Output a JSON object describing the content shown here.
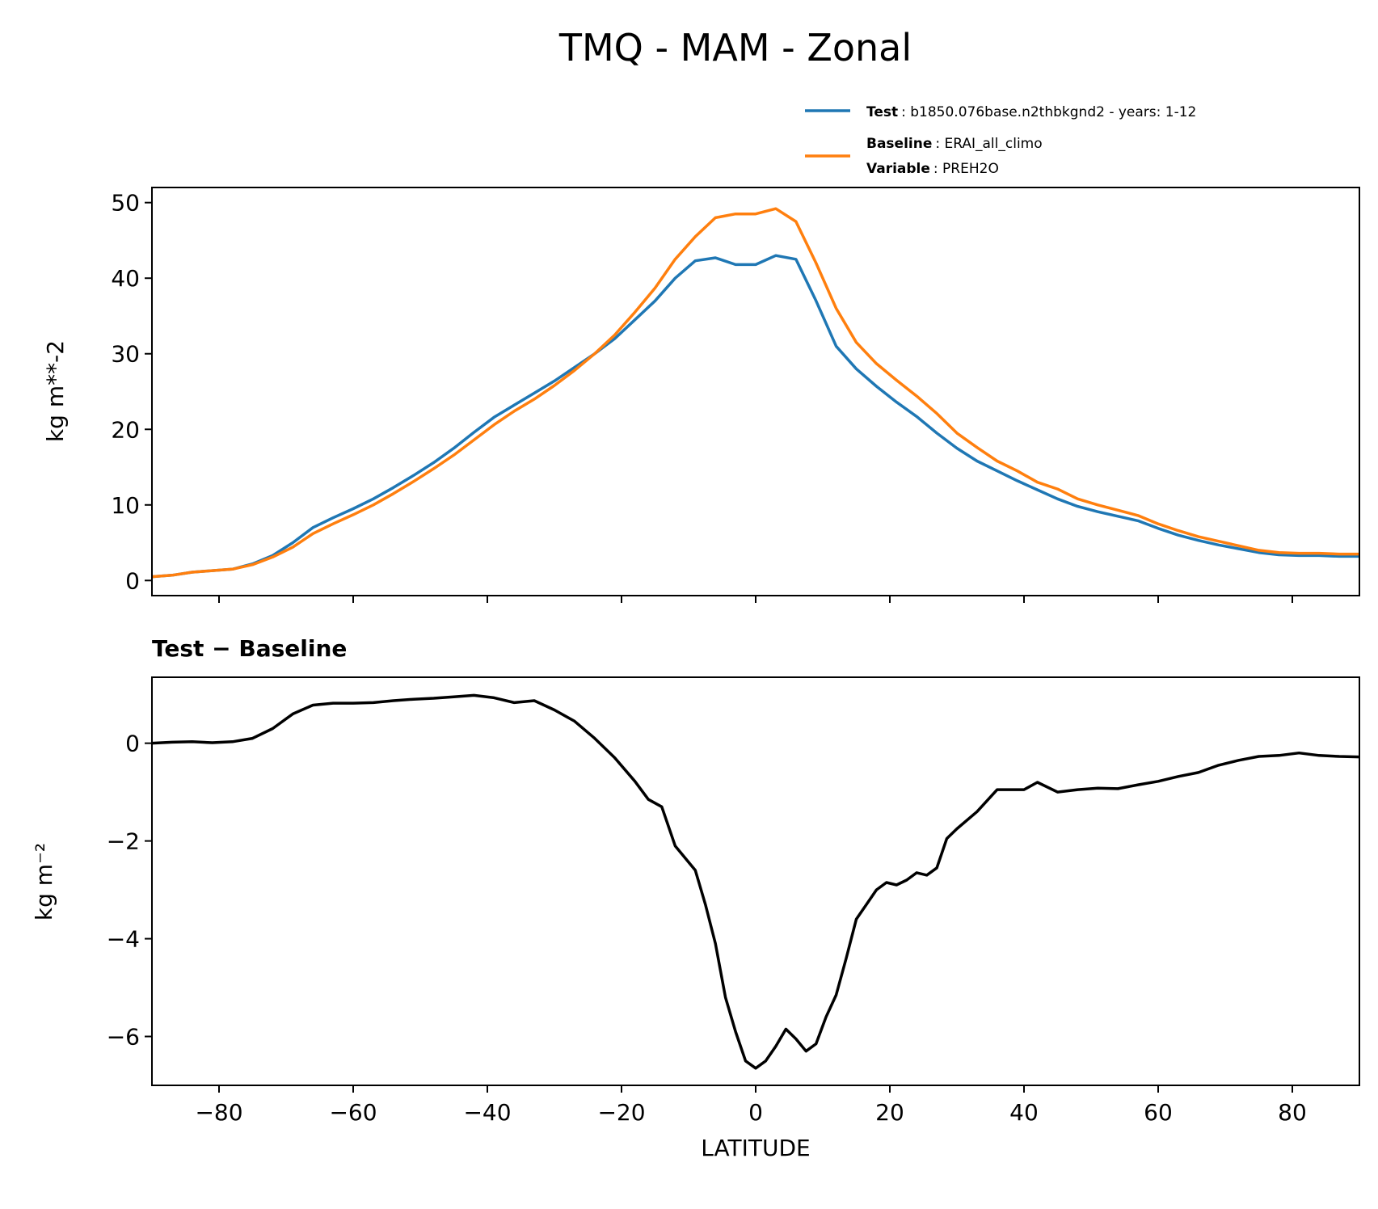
{
  "figure": {
    "title": "TMQ - MAM - Zonal"
  },
  "legend": {
    "test_label": "Test",
    "test_text": ": b1850.076base.n2thbkgnd2 - years: 1-12",
    "baseline_label": "Baseline",
    "baseline_text": ": ERAI_all_climo",
    "variable_label": "Variable",
    "variable_text": ": PREH2O",
    "test_color": "#1f77b4",
    "baseline_color": "#ff7f0e"
  },
  "chart_data": [
    {
      "type": "line",
      "title": "",
      "xlabel": "",
      "ylabel": "kg m**-2",
      "xlim": [
        -90,
        90
      ],
      "ylim": [
        -2,
        52
      ],
      "yticks": [
        0,
        10,
        20,
        30,
        40,
        50
      ],
      "xticks": [
        -80,
        -60,
        -40,
        -20,
        0,
        20,
        40,
        60,
        80
      ],
      "x": [
        -90,
        -87,
        -84,
        -81,
        -78,
        -75,
        -72,
        -69,
        -66,
        -63,
        -60,
        -57,
        -54,
        -51,
        -48,
        -45,
        -42,
        -39,
        -36,
        -33,
        -30,
        -27,
        -24,
        -21,
        -18,
        -15,
        -12,
        -9,
        -6,
        -3,
        0,
        3,
        6,
        9,
        12,
        15,
        18,
        21,
        24,
        27,
        30,
        33,
        36,
        39,
        42,
        45,
        48,
        51,
        54,
        57,
        60,
        63,
        66,
        69,
        72,
        75,
        78,
        81,
        84,
        87,
        90
      ],
      "series": [
        {
          "name": "Test",
          "color": "#1f77b4",
          "values": [
            0.5,
            0.7,
            1.1,
            1.3,
            1.5,
            2.2,
            3.3,
            5.0,
            7.0,
            8.3,
            9.5,
            10.8,
            12.3,
            13.9,
            15.6,
            17.5,
            19.6,
            21.6,
            23.2,
            24.8,
            26.4,
            28.2,
            30.0,
            32.0,
            34.5,
            37.0,
            40.0,
            42.3,
            42.7,
            41.8,
            41.8,
            43.0,
            42.5,
            37.0,
            31.0,
            28.0,
            25.7,
            23.6,
            21.7,
            19.5,
            17.5,
            15.8,
            14.5,
            13.2,
            12.0,
            10.8,
            9.8,
            9.1,
            8.5,
            7.9,
            6.9,
            6.0,
            5.3,
            4.7,
            4.2,
            3.7,
            3.4,
            3.3,
            3.3,
            3.2,
            3.2
          ]
        },
        {
          "name": "Baseline",
          "color": "#ff7f0e",
          "values": [
            0.5,
            0.7,
            1.1,
            1.3,
            1.5,
            2.1,
            3.1,
            4.4,
            6.2,
            7.5,
            8.7,
            10.0,
            11.5,
            13.1,
            14.8,
            16.6,
            18.6,
            20.6,
            22.4,
            24.0,
            25.8,
            27.8,
            30.0,
            32.5,
            35.5,
            38.7,
            42.5,
            45.5,
            48.0,
            48.5,
            48.5,
            49.2,
            47.5,
            42.0,
            36.0,
            31.5,
            28.7,
            26.5,
            24.4,
            22.1,
            19.5,
            17.6,
            15.8,
            14.5,
            13.0,
            12.1,
            10.8,
            10.0,
            9.3,
            8.6,
            7.5,
            6.6,
            5.8,
            5.2,
            4.6,
            4.0,
            3.7,
            3.6,
            3.6,
            3.5,
            3.5
          ]
        }
      ]
    },
    {
      "type": "line",
      "title": "Test − Baseline",
      "xlabel": "LATITUDE",
      "ylabel": "kg m⁻²",
      "xlim": [
        -90,
        90
      ],
      "ylim": [
        -7,
        1.35
      ],
      "yticks": [
        0,
        -2,
        -4,
        -6
      ],
      "xticks": [
        -80,
        -60,
        -40,
        -20,
        0,
        20,
        40,
        60,
        80
      ],
      "x": [
        -90,
        -87,
        -84,
        -81,
        -78,
        -75,
        -72,
        -69,
        -66,
        -63,
        -60,
        -57,
        -54,
        -51,
        -48,
        -45,
        -42,
        -39,
        -36,
        -33,
        -30,
        -27,
        -24,
        -21,
        -18,
        -16,
        -14,
        -12,
        -9,
        -7.5,
        -6,
        -4.5,
        -3,
        -1.5,
        0,
        1.5,
        3,
        4.5,
        6,
        7.5,
        9,
        10.5,
        12,
        13.5,
        15,
        16.5,
        18,
        19.5,
        21,
        22.5,
        24,
        25.5,
        27,
        28.5,
        30,
        33,
        36,
        38,
        40,
        42,
        45,
        48,
        51,
        54,
        57,
        60,
        63,
        66,
        69,
        72,
        75,
        78,
        81,
        84,
        87,
        90
      ],
      "series": [
        {
          "name": "Test − Baseline",
          "color": "#000000",
          "values": [
            0.0,
            0.02,
            0.03,
            0.01,
            0.03,
            0.1,
            0.3,
            0.6,
            0.78,
            0.82,
            0.82,
            0.83,
            0.87,
            0.9,
            0.92,
            0.95,
            0.98,
            0.93,
            0.83,
            0.87,
            0.68,
            0.45,
            0.1,
            -0.3,
            -0.78,
            -1.15,
            -1.3,
            -2.1,
            -2.6,
            -3.3,
            -4.1,
            -5.2,
            -5.9,
            -6.5,
            -6.65,
            -6.5,
            -6.2,
            -5.85,
            -6.05,
            -6.3,
            -6.15,
            -5.6,
            -5.15,
            -4.4,
            -3.6,
            -3.3,
            -3.0,
            -2.85,
            -2.9,
            -2.8,
            -2.65,
            -2.7,
            -2.55,
            -1.95,
            -1.75,
            -1.4,
            -0.95,
            -0.95,
            -0.95,
            -0.8,
            -1.0,
            -0.95,
            -0.92,
            -0.93,
            -0.85,
            -0.78,
            -0.68,
            -0.6,
            -0.45,
            -0.35,
            -0.27,
            -0.25,
            -0.2,
            -0.25,
            -0.27,
            -0.28
          ]
        }
      ]
    }
  ]
}
